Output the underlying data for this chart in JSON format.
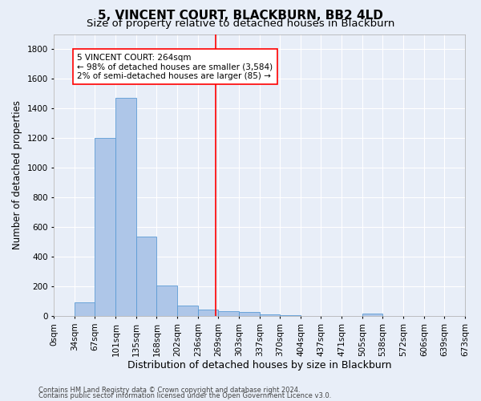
{
  "title": "5, VINCENT COURT, BLACKBURN, BB2 4LD",
  "subtitle": "Size of property relative to detached houses in Blackburn",
  "xlabel": "Distribution of detached houses by size in Blackburn",
  "ylabel": "Number of detached properties",
  "footnote1": "Contains HM Land Registry data © Crown copyright and database right 2024.",
  "footnote2": "Contains public sector information licensed under the Open Government Licence v3.0.",
  "bar_edges": [
    0,
    34,
    67,
    101,
    135,
    168,
    202,
    236,
    269,
    303,
    337,
    370,
    404,
    437,
    471,
    505,
    538,
    572,
    606,
    639,
    673
  ],
  "bar_heights": [
    0,
    95,
    1200,
    1470,
    535,
    205,
    70,
    45,
    35,
    28,
    13,
    5,
    0,
    0,
    0,
    15,
    0,
    0,
    0,
    0
  ],
  "tick_labels": [
    "0sqm",
    "34sqm",
    "67sqm",
    "101sqm",
    "135sqm",
    "168sqm",
    "202sqm",
    "236sqm",
    "269sqm",
    "303sqm",
    "337sqm",
    "370sqm",
    "404sqm",
    "437sqm",
    "471sqm",
    "505sqm",
    "538sqm",
    "572sqm",
    "606sqm",
    "639sqm",
    "673sqm"
  ],
  "bar_color": "#AEC6E8",
  "bar_edge_color": "#5B9BD5",
  "vline_x": 264,
  "vline_color": "red",
  "ylim": [
    0,
    1900
  ],
  "yticks": [
    0,
    200,
    400,
    600,
    800,
    1000,
    1200,
    1400,
    1600,
    1800
  ],
  "annotation_text": "5 VINCENT COURT: 264sqm\n← 98% of detached houses are smaller (3,584)\n2% of semi-detached houses are larger (85) →",
  "annotation_box_color": "white",
  "annotation_box_edge": "red",
  "background_color": "#E8EEF8",
  "grid_color": "white",
  "title_fontsize": 11,
  "subtitle_fontsize": 9.5,
  "xlabel_fontsize": 9,
  "ylabel_fontsize": 8.5,
  "tick_fontsize": 7.5,
  "annotation_fontsize": 7.5,
  "footnote_fontsize": 6
}
